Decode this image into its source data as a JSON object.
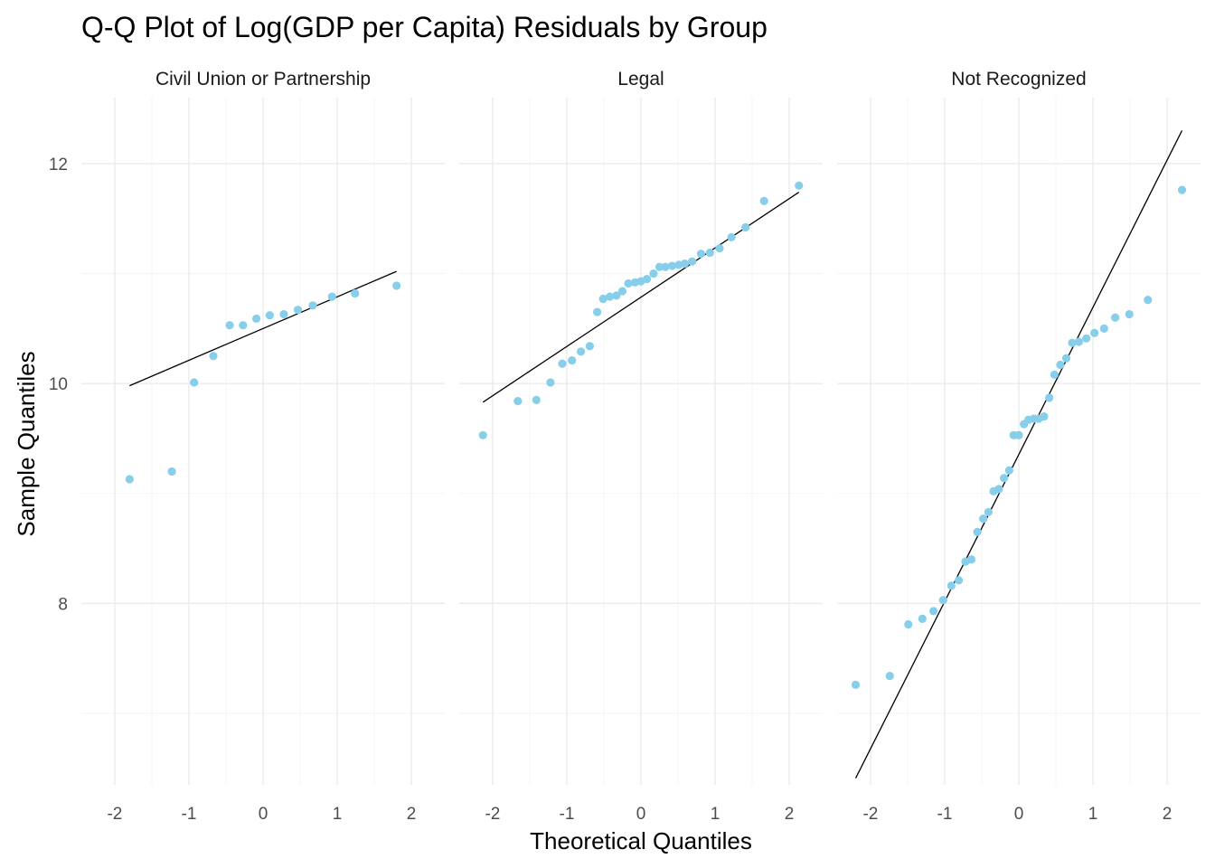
{
  "chart_data": {
    "type": "scatter",
    "title": "Q-Q Plot of Log(GDP per Capita) Residuals by Group",
    "xlabel": "Theoretical Quantiles",
    "ylabel": "Sample Quantiles",
    "xlim": [
      -2.45,
      2.45
    ],
    "ylim": [
      6.35,
      12.6
    ],
    "x_ticks": [
      "-2",
      "-1",
      "0",
      "1",
      "2"
    ],
    "y_ticks": [
      "8",
      "10",
      "12"
    ],
    "grid": true,
    "point_color": "#87CEEB",
    "line_color": "#000000",
    "panels": [
      {
        "name": "Civil Union or Partnership",
        "points": [
          {
            "x": -1.8,
            "y": 9.13
          },
          {
            "x": -1.23,
            "y": 9.2
          },
          {
            "x": -0.93,
            "y": 10.01
          },
          {
            "x": -0.67,
            "y": 10.25
          },
          {
            "x": -0.45,
            "y": 10.53
          },
          {
            "x": -0.27,
            "y": 10.53
          },
          {
            "x": -0.09,
            "y": 10.59
          },
          {
            "x": 0.09,
            "y": 10.62
          },
          {
            "x": 0.28,
            "y": 10.63
          },
          {
            "x": 0.47,
            "y": 10.67
          },
          {
            "x": 0.67,
            "y": 10.71
          },
          {
            "x": 0.93,
            "y": 10.79
          },
          {
            "x": 1.24,
            "y": 10.82
          },
          {
            "x": 1.8,
            "y": 10.89
          }
        ],
        "line": {
          "x1": -1.8,
          "y1": 9.98,
          "x2": 1.8,
          "y2": 11.02
        }
      },
      {
        "name": "Legal",
        "points": [
          {
            "x": -2.13,
            "y": 9.53
          },
          {
            "x": -1.66,
            "y": 9.84
          },
          {
            "x": -1.41,
            "y": 9.85
          },
          {
            "x": -1.22,
            "y": 10.01
          },
          {
            "x": -1.06,
            "y": 10.18
          },
          {
            "x": -0.93,
            "y": 10.21
          },
          {
            "x": -0.81,
            "y": 10.29
          },
          {
            "x": -0.69,
            "y": 10.34
          },
          {
            "x": -0.59,
            "y": 10.65
          },
          {
            "x": -0.51,
            "y": 10.77
          },
          {
            "x": -0.42,
            "y": 10.79
          },
          {
            "x": -0.33,
            "y": 10.8
          },
          {
            "x": -0.25,
            "y": 10.84
          },
          {
            "x": -0.17,
            "y": 10.91
          },
          {
            "x": -0.08,
            "y": 10.92
          },
          {
            "x": 0.0,
            "y": 10.93
          },
          {
            "x": 0.08,
            "y": 10.95
          },
          {
            "x": 0.17,
            "y": 11.0
          },
          {
            "x": 0.25,
            "y": 11.06
          },
          {
            "x": 0.33,
            "y": 11.06
          },
          {
            "x": 0.42,
            "y": 11.07
          },
          {
            "x": 0.51,
            "y": 11.08
          },
          {
            "x": 0.59,
            "y": 11.09
          },
          {
            "x": 0.69,
            "y": 11.11
          },
          {
            "x": 0.81,
            "y": 11.18
          },
          {
            "x": 0.93,
            "y": 11.19
          },
          {
            "x": 1.06,
            "y": 11.23
          },
          {
            "x": 1.22,
            "y": 11.33
          },
          {
            "x": 1.41,
            "y": 11.42
          },
          {
            "x": 1.66,
            "y": 11.66
          },
          {
            "x": 2.13,
            "y": 11.8
          }
        ],
        "line": {
          "x1": -2.13,
          "y1": 9.83,
          "x2": 2.13,
          "y2": 11.74
        }
      },
      {
        "name": "Not Recognized",
        "points": [
          {
            "x": -2.2,
            "y": 7.26
          },
          {
            "x": -1.74,
            "y": 7.34
          },
          {
            "x": -1.49,
            "y": 7.81
          },
          {
            "x": -1.3,
            "y": 7.86
          },
          {
            "x": -1.15,
            "y": 7.93
          },
          {
            "x": -1.02,
            "y": 8.03
          },
          {
            "x": -0.91,
            "y": 8.16
          },
          {
            "x": -0.81,
            "y": 8.21
          },
          {
            "x": -0.72,
            "y": 8.38
          },
          {
            "x": -0.64,
            "y": 8.4
          },
          {
            "x": -0.56,
            "y": 8.65
          },
          {
            "x": -0.48,
            "y": 8.77
          },
          {
            "x": -0.41,
            "y": 8.83
          },
          {
            "x": -0.34,
            "y": 9.02
          },
          {
            "x": -0.27,
            "y": 9.04
          },
          {
            "x": -0.2,
            "y": 9.14
          },
          {
            "x": -0.13,
            "y": 9.21
          },
          {
            "x": -0.07,
            "y": 9.53
          },
          {
            "x": 0.0,
            "y": 9.53
          },
          {
            "x": 0.07,
            "y": 9.63
          },
          {
            "x": 0.13,
            "y": 9.67
          },
          {
            "x": 0.2,
            "y": 9.68
          },
          {
            "x": 0.27,
            "y": 9.68
          },
          {
            "x": 0.34,
            "y": 9.7
          },
          {
            "x": 0.41,
            "y": 9.87
          },
          {
            "x": 0.48,
            "y": 10.08
          },
          {
            "x": 0.56,
            "y": 10.17
          },
          {
            "x": 0.64,
            "y": 10.23
          },
          {
            "x": 0.72,
            "y": 10.37
          },
          {
            "x": 0.81,
            "y": 10.38
          },
          {
            "x": 0.91,
            "y": 10.41
          },
          {
            "x": 1.02,
            "y": 10.46
          },
          {
            "x": 1.15,
            "y": 10.5
          },
          {
            "x": 1.3,
            "y": 10.6
          },
          {
            "x": 1.49,
            "y": 10.63
          },
          {
            "x": 1.74,
            "y": 10.76
          },
          {
            "x": 2.2,
            "y": 11.76
          }
        ],
        "line": {
          "x1": -2.2,
          "y1": 6.41,
          "x2": 2.2,
          "y2": 12.3
        }
      }
    ]
  }
}
